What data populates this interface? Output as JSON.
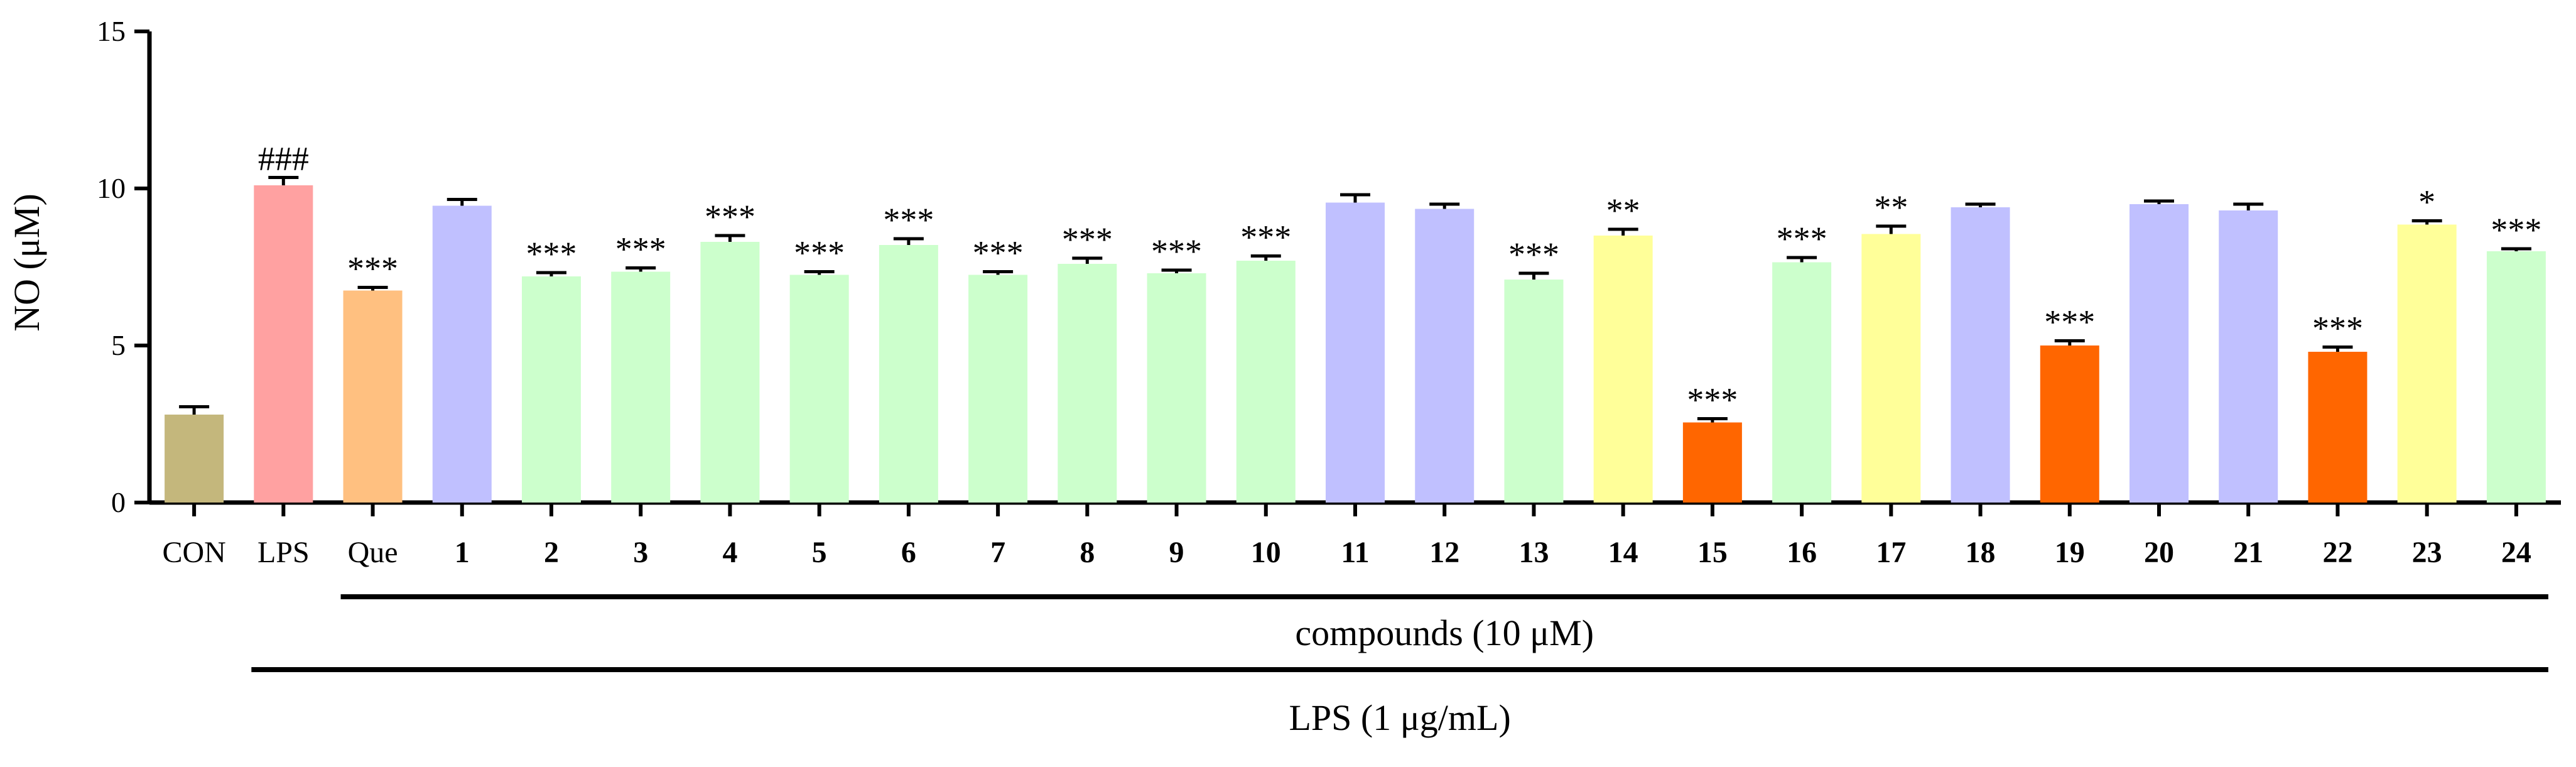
{
  "chart_data": {
    "type": "bar",
    "ylabel": "NO (μM)",
    "ylim": [
      0,
      15
    ],
    "yticks": [
      "0",
      "5",
      "10",
      "15"
    ],
    "categories": [
      "CON",
      "LPS",
      "Que",
      "1",
      "2",
      "3",
      "4",
      "5",
      "6",
      "7",
      "8",
      "9",
      "10",
      "11",
      "12",
      "13",
      "14",
      "15",
      "16",
      "17",
      "18",
      "19",
      "20",
      "21",
      "22",
      "23",
      "24"
    ],
    "values": [
      2.8,
      10.1,
      6.75,
      9.45,
      7.2,
      7.35,
      8.3,
      7.25,
      8.2,
      7.25,
      7.6,
      7.3,
      7.7,
      9.55,
      9.35,
      7.1,
      8.5,
      2.55,
      7.65,
      8.55,
      9.4,
      5.0,
      9.5,
      9.3,
      4.8,
      8.85,
      8.0
    ],
    "errors": [
      0.25,
      0.25,
      0.1,
      0.2,
      0.12,
      0.12,
      0.2,
      0.1,
      0.2,
      0.1,
      0.18,
      0.1,
      0.15,
      0.25,
      0.15,
      0.2,
      0.2,
      0.12,
      0.15,
      0.25,
      0.1,
      0.15,
      0.1,
      0.2,
      0.15,
      0.12,
      0.08
    ],
    "significance": [
      "",
      "###",
      "***",
      "",
      "***",
      "***",
      "***",
      "***",
      "***",
      "***",
      "***",
      "***",
      "***",
      "",
      "",
      "***",
      "**",
      "***",
      "***",
      "**",
      "",
      "***",
      "",
      "",
      "***",
      "*",
      "***"
    ],
    "colors": [
      "#c4b77c",
      "#ffa1a1",
      "#ffc080",
      "#c0c0ff",
      "#ccffcc",
      "#ccffcc",
      "#ccffcc",
      "#ccffcc",
      "#ccffcc",
      "#ccffcc",
      "#ccffcc",
      "#ccffcc",
      "#ccffcc",
      "#c0c0ff",
      "#c0c0ff",
      "#ccffcc",
      "#ffff99",
      "#ff6600",
      "#ccffcc",
      "#ffff99",
      "#c0c0ff",
      "#ff6600",
      "#c0c0ff",
      "#c0c0ff",
      "#ff6600",
      "#ffff99",
      "#ccffcc"
    ],
    "group_labels": {
      "compounds": "compounds  (10 μM)",
      "lps": "LPS  (1 μg/mL)"
    }
  }
}
